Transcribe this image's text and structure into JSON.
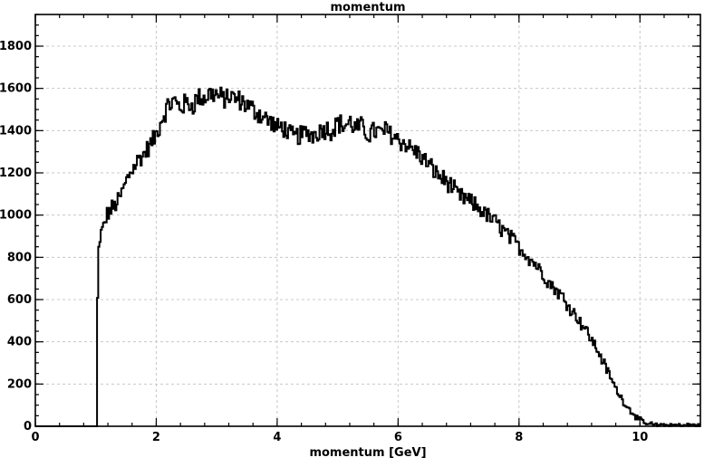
{
  "chart_data": {
    "type": "line",
    "title": "momentum",
    "xlabel": "momentum [GeV]",
    "ylabel": "",
    "xlim": [
      0,
      11
    ],
    "ylim": [
      0,
      1950
    ],
    "x_ticks": [
      0,
      2,
      4,
      6,
      8,
      10
    ],
    "y_ticks": [
      0,
      200,
      400,
      600,
      800,
      1000,
      1200,
      1400,
      1600,
      1800
    ],
    "grid": true,
    "legend": "none",
    "line_color": "#000000",
    "series": [
      {
        "style": "step-histogram",
        "x": [
          0.0,
          1.0,
          1.04,
          1.06,
          1.1,
          1.2,
          1.3,
          1.4,
          1.5,
          1.6,
          1.7,
          1.8,
          1.9,
          2.0,
          2.1,
          2.2,
          2.3,
          2.4,
          2.5,
          2.6,
          2.7,
          2.8,
          2.9,
          3.0,
          3.1,
          3.2,
          3.3,
          3.4,
          3.5,
          3.6,
          3.7,
          3.8,
          3.9,
          4.0,
          4.1,
          4.2,
          4.3,
          4.4,
          4.5,
          4.6,
          4.7,
          4.8,
          4.9,
          5.0,
          5.1,
          5.2,
          5.3,
          5.4,
          5.5,
          5.6,
          5.7,
          5.8,
          5.9,
          6.0,
          6.1,
          6.2,
          6.3,
          6.4,
          6.5,
          6.6,
          6.7,
          6.8,
          6.9,
          7.0,
          7.1,
          7.2,
          7.3,
          7.4,
          7.5,
          7.6,
          7.7,
          7.8,
          7.9,
          8.0,
          8.1,
          8.2,
          8.3,
          8.4,
          8.5,
          8.6,
          8.7,
          8.8,
          8.9,
          9.0,
          9.1,
          9.2,
          9.3,
          9.4,
          9.5,
          9.6,
          9.7,
          9.8,
          9.9,
          10.0,
          10.1,
          10.2,
          10.3,
          10.4,
          10.5,
          10.6,
          10.7,
          10.8,
          10.9,
          11.0
        ],
        "values": [
          0,
          0,
          790,
          880,
          920,
          1010,
          1040,
          1080,
          1160,
          1220,
          1260,
          1290,
          1330,
          1380,
          1460,
          1520,
          1540,
          1510,
          1530,
          1520,
          1560,
          1550,
          1580,
          1570,
          1550,
          1560,
          1550,
          1540,
          1520,
          1500,
          1480,
          1460,
          1440,
          1410,
          1420,
          1380,
          1370,
          1380,
          1390,
          1380,
          1400,
          1410,
          1400,
          1440,
          1420,
          1440,
          1410,
          1420,
          1380,
          1400,
          1390,
          1400,
          1380,
          1360,
          1340,
          1320,
          1300,
          1270,
          1240,
          1210,
          1180,
          1160,
          1130,
          1090,
          1080,
          1060,
          1040,
          1020,
          990,
          970,
          940,
          910,
          880,
          850,
          820,
          790,
          760,
          720,
          680,
          650,
          620,
          580,
          540,
          500,
          460,
          410,
          360,
          300,
          240,
          180,
          130,
          90,
          55,
          30,
          15,
          10,
          5,
          5,
          5,
          5,
          5,
          5,
          5,
          5
        ]
      }
    ]
  }
}
